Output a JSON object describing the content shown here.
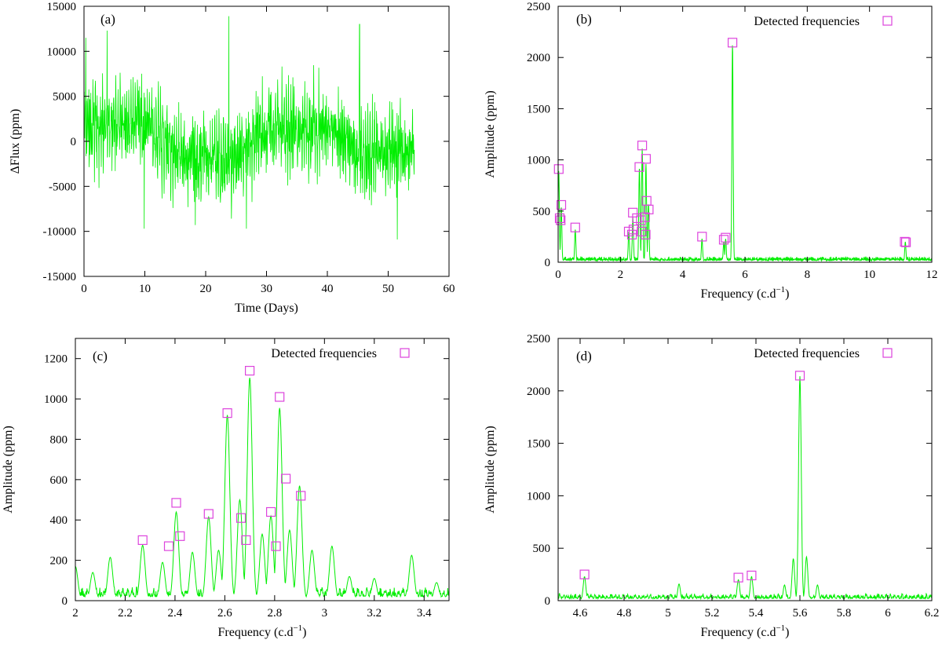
{
  "colors": {
    "signal": "#00ee00",
    "marker": "#dd44dd",
    "axis": "#000000"
  },
  "chart_data": [
    {
      "id": "a",
      "panel_label": "(a)",
      "type": "line",
      "title": "",
      "xlabel": "Time (Days)",
      "ylabel": "ΔFlux (ppm)",
      "xlim": [
        0,
        60
      ],
      "ylim": [
        -15000,
        15000
      ],
      "xticks": [
        0,
        10,
        20,
        30,
        40,
        50,
        60
      ],
      "xtick_labels": [
        "0",
        "10",
        "20",
        "30",
        "40",
        "50",
        "60"
      ],
      "yticks": [
        -15000,
        -10000,
        -5000,
        0,
        5000,
        10000,
        15000
      ],
      "ytick_labels": [
        "-15000",
        "-10000",
        "-5000",
        "0",
        "5000",
        "10000",
        "15000"
      ],
      "grid": false,
      "series": [
        {
          "name": "light curve",
          "kind": "noise",
          "x_range": [
            0,
            54.3
          ],
          "samples": 1300,
          "components": [
            {
              "freq": 5.6,
              "amp": 2100
            },
            {
              "freq": 2.7,
              "amp": 1140
            },
            {
              "freq": 2.61,
              "amp": 930
            },
            {
              "freq": 2.82,
              "amp": 1010
            },
            {
              "freq": 2.9,
              "amp": 520
            },
            {
              "freq": 0.03,
              "amp": 900
            },
            {
              "freq": 0.1,
              "amp": 560
            },
            {
              "freq": 0.55,
              "amp": 340
            },
            {
              "freq": 2.4,
              "amp": 480
            },
            {
              "freq": 4.62,
              "amp": 250
            },
            {
              "freq": 11.15,
              "amp": 200
            }
          ],
          "noise_sd": 2500,
          "peaks": [
            {
              "x": 0.3,
              "y": 11500
            },
            {
              "x": 3.8,
              "y": 12300
            },
            {
              "x": 23.8,
              "y": 13900
            },
            {
              "x": 45.3,
              "y": 13000
            },
            {
              "x": 9.9,
              "y": -9700
            },
            {
              "x": 18.3,
              "y": -9300
            },
            {
              "x": 26.7,
              "y": -9700
            },
            {
              "x": 51.5,
              "y": -10900
            }
          ]
        }
      ]
    },
    {
      "id": "b",
      "panel_label": "(b)",
      "type": "line",
      "title": "",
      "xlabel": "Frequency (c.d",
      "xlabel_sup": "−1",
      "xlabel_end": ")",
      "ylabel": "Amplitude (ppm)",
      "xlim": [
        0,
        12
      ],
      "ylim": [
        0,
        2500
      ],
      "xticks": [
        0,
        2,
        4,
        6,
        8,
        10,
        12
      ],
      "xtick_labels": [
        "0",
        "2",
        "4",
        "6",
        "8",
        "10",
        "12"
      ],
      "yticks": [
        0,
        500,
        1000,
        1500,
        2000,
        2500
      ],
      "ytick_labels": [
        "0",
        "500",
        "1000",
        "1500",
        "2000",
        "2500"
      ],
      "grid": false,
      "legend": "top-right",
      "legend_label": "Detected frequencies",
      "series": [
        {
          "name": "amplitude spectrum",
          "kind": "spectrum",
          "x_range": [
            0,
            12
          ],
          "samples": 1400,
          "peaks": [
            {
              "x": 0.02,
              "y": 900
            },
            {
              "x": 0.1,
              "y": 540
            },
            {
              "x": 0.55,
              "y": 320
            },
            {
              "x": 2.27,
              "y": 300
            },
            {
              "x": 2.4,
              "y": 440
            },
            {
              "x": 2.61,
              "y": 930
            },
            {
              "x": 2.7,
              "y": 1110
            },
            {
              "x": 2.82,
              "y": 960
            },
            {
              "x": 2.9,
              "y": 570
            },
            {
              "x": 4.62,
              "y": 230
            },
            {
              "x": 5.32,
              "y": 200
            },
            {
              "x": 5.38,
              "y": 230
            },
            {
              "x": 5.6,
              "y": 2140
            },
            {
              "x": 11.15,
              "y": 200
            }
          ],
          "peak_width": 0.02,
          "base_level": 45
        },
        {
          "name": "Detected frequencies",
          "kind": "markers",
          "x": [
            0.02,
            0.05,
            0.08,
            0.1,
            0.55,
            2.27,
            2.37,
            2.4,
            2.42,
            2.53,
            2.61,
            2.66,
            2.68,
            2.7,
            2.79,
            2.81,
            2.82,
            2.84,
            2.91,
            4.62,
            5.32,
            5.38,
            5.6,
            11.13,
            11.17
          ],
          "y": [
            910,
            430,
            410,
            560,
            340,
            300,
            270,
            485,
            320,
            430,
            930,
            410,
            300,
            1140,
            440,
            270,
            1010,
            600,
            515,
            250,
            220,
            240,
            2145,
            200,
            195
          ]
        }
      ]
    },
    {
      "id": "c",
      "panel_label": "(c)",
      "type": "line",
      "title": "",
      "xlabel": "Frequency (c.d",
      "xlabel_sup": "−1",
      "xlabel_end": ")",
      "ylabel": "Amplitude (ppm)",
      "xlim": [
        2,
        3.5
      ],
      "ylim": [
        0,
        1300
      ],
      "xticks": [
        2,
        2.2,
        2.4,
        2.6,
        2.8,
        3,
        3.2,
        3.4
      ],
      "xtick_labels": [
        "2",
        "2.2",
        "2.4",
        "2.6",
        "2.8",
        "3",
        "3.2",
        "3.4"
      ],
      "yticks": [
        0,
        200,
        400,
        600,
        800,
        1000,
        1200
      ],
      "ytick_labels": [
        "0",
        "200",
        "400",
        "600",
        "800",
        "1000",
        "1200"
      ],
      "grid": false,
      "legend": "top-right",
      "legend_label": "Detected frequencies",
      "series": [
        {
          "name": "amplitude spectrum",
          "kind": "spectrum",
          "x_range": [
            2,
            3.5
          ],
          "samples": 900,
          "peaks": [
            {
              "x": 2.0,
              "y": 170
            },
            {
              "x": 2.07,
              "y": 140
            },
            {
              "x": 2.14,
              "y": 215
            },
            {
              "x": 2.27,
              "y": 275
            },
            {
              "x": 2.35,
              "y": 190
            },
            {
              "x": 2.405,
              "y": 440
            },
            {
              "x": 2.47,
              "y": 240
            },
            {
              "x": 2.535,
              "y": 415
            },
            {
              "x": 2.575,
              "y": 250
            },
            {
              "x": 2.61,
              "y": 920
            },
            {
              "x": 2.66,
              "y": 500
            },
            {
              "x": 2.7,
              "y": 1105
            },
            {
              "x": 2.75,
              "y": 330
            },
            {
              "x": 2.785,
              "y": 420
            },
            {
              "x": 2.82,
              "y": 955
            },
            {
              "x": 2.86,
              "y": 350
            },
            {
              "x": 2.9,
              "y": 570
            },
            {
              "x": 2.95,
              "y": 250
            },
            {
              "x": 3.03,
              "y": 270
            },
            {
              "x": 3.1,
              "y": 120
            },
            {
              "x": 3.2,
              "y": 110
            },
            {
              "x": 3.35,
              "y": 225
            },
            {
              "x": 3.45,
              "y": 90
            }
          ],
          "peak_width": 0.01,
          "base_level": 55
        },
        {
          "name": "Detected frequencies",
          "kind": "markers",
          "x": [
            2.27,
            2.375,
            2.405,
            2.42,
            2.535,
            2.61,
            2.665,
            2.685,
            2.7,
            2.785,
            2.805,
            2.82,
            2.845,
            2.905
          ],
          "y": [
            300,
            270,
            485,
            320,
            430,
            930,
            410,
            300,
            1140,
            440,
            270,
            1010,
            605,
            520
          ]
        }
      ]
    },
    {
      "id": "d",
      "panel_label": "(d)",
      "type": "line",
      "title": "",
      "xlabel": "Frequency (c.d",
      "xlabel_sup": "−1",
      "xlabel_end": ")",
      "ylabel": "Amplitude (ppm)",
      "xlim": [
        4.5,
        6.2
      ],
      "ylim": [
        0,
        2500
      ],
      "xticks": [
        4.6,
        4.8,
        5,
        5.2,
        5.4,
        5.6,
        5.8,
        6,
        6.2
      ],
      "xtick_labels": [
        "4.6",
        "4.8",
        "5",
        "5.2",
        "5.4",
        "5.6",
        "5.8",
        "6",
        "6.2"
      ],
      "yticks": [
        0,
        500,
        1000,
        1500,
        2000,
        2500
      ],
      "ytick_labels": [
        "0",
        "500",
        "1000",
        "1500",
        "2000",
        "2500"
      ],
      "grid": false,
      "legend": "top-right",
      "legend_label": "Detected frequencies",
      "series": [
        {
          "name": "amplitude spectrum",
          "kind": "spectrum",
          "x_range": [
            4.5,
            6.2
          ],
          "samples": 1000,
          "peaks": [
            {
              "x": 4.62,
              "y": 230
            },
            {
              "x": 5.05,
              "y": 160
            },
            {
              "x": 5.32,
              "y": 200
            },
            {
              "x": 5.38,
              "y": 230
            },
            {
              "x": 5.57,
              "y": 400
            },
            {
              "x": 5.6,
              "y": 2140
            },
            {
              "x": 5.63,
              "y": 420
            },
            {
              "x": 5.53,
              "y": 150
            },
            {
              "x": 5.68,
              "y": 150
            }
          ],
          "peak_width": 0.006,
          "base_level": 55
        },
        {
          "name": "Detected frequencies",
          "kind": "markers",
          "x": [
            4.62,
            5.32,
            5.38,
            5.6
          ],
          "y": [
            250,
            220,
            240,
            2145
          ]
        }
      ]
    }
  ]
}
